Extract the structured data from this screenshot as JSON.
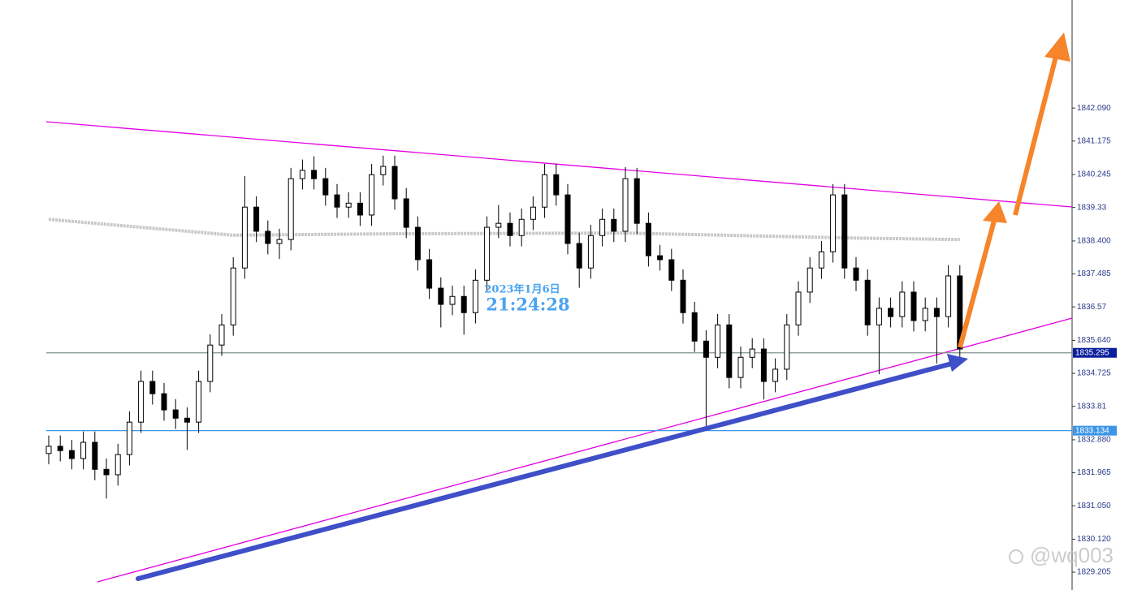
{
  "chart_data": {
    "type": "candlestick",
    "timestamp_date": "2023年1月6日",
    "timestamp_time": "21:24:28",
    "watermark": "@wq003",
    "ylim": [
      1828.71,
      1845.09
    ],
    "yticks": [
      {
        "value": 1842.09,
        "label": "1842.090"
      },
      1841.175,
      1840.245,
      1839.33,
      {
        "value": 1838.4,
        "label": "1838.400"
      },
      1837.485,
      1836.57,
      {
        "value": 1835.64,
        "label": "1835.640"
      },
      1834.725,
      1833.81,
      {
        "value": 1832.88,
        "label": "1832.880"
      },
      1831.965,
      {
        "value": 1831.05,
        "label": "1831.050"
      },
      {
        "value": 1830.12,
        "label": "1830.120"
      },
      1829.205
    ],
    "price_lines": [
      {
        "value": 1835.295,
        "color": "#7f9090",
        "label_bg": "#0a1f9c"
      },
      {
        "value": 1833.134,
        "color": "#3c96e6",
        "label_bg": "#3c96e6"
      }
    ],
    "open": [
      1832.5,
      1832.7,
      1832.58,
      1832.36,
      1832.81,
      1832.06,
      1831.91,
      1832.47,
      1833.37,
      1834.5,
      1834.16,
      1833.71,
      1833.48,
      1833.37,
      1834.5,
      1835.51,
      1836.07,
      1837.65,
      1839.34,
      1838.67,
      1838.33,
      1838.44,
      1840.13,
      1840.36,
      1840.13,
      1839.68,
      1839.34,
      1839.45,
      1839.12,
      1840.24,
      1840.47,
      1839.57,
      1838.78,
      1837.88,
      1837.09,
      1836.64,
      1836.86,
      1836.41,
      1837.31,
      1838.78,
      1838.89,
      1838.55,
      1839.0,
      1839.34,
      1840.24,
      1839.68,
      1838.33,
      1837.65,
      1838.55,
      1839.0,
      1838.67,
      1840.13,
      1838.89,
      1837.99,
      1837.88,
      1837.31,
      1836.41,
      1835.62,
      1835.17,
      1836.07,
      1834.61,
      1835.17,
      1835.4,
      1834.5,
      1834.84,
      1836.07,
      1836.98,
      1837.65,
      1838.1,
      1839.68,
      1837.65,
      1837.31,
      1836.07,
      1836.53,
      1836.3,
      1836.98,
      1836.19,
      1836.53,
      1836.3,
      1837.43
    ],
    "high": [
      1833.0,
      1833.0,
      1832.88,
      1833.11,
      1833.11,
      1832.36,
      1832.77,
      1833.67,
      1834.8,
      1834.8,
      1834.46,
      1834.01,
      1833.78,
      1834.8,
      1835.81,
      1836.37,
      1837.95,
      1840.2,
      1839.64,
      1838.97,
      1838.74,
      1840.43,
      1840.66,
      1840.75,
      1840.43,
      1839.98,
      1839.75,
      1839.75,
      1840.54,
      1840.77,
      1840.77,
      1839.87,
      1839.08,
      1838.18,
      1837.39,
      1837.16,
      1837.16,
      1837.61,
      1839.08,
      1839.4,
      1839.19,
      1839.3,
      1839.64,
      1840.54,
      1840.54,
      1839.98,
      1838.63,
      1838.85,
      1839.3,
      1839.3,
      1840.45,
      1840.43,
      1839.19,
      1838.29,
      1838.18,
      1837.61,
      1836.71,
      1835.92,
      1836.37,
      1836.37,
      1835.47,
      1835.7,
      1835.7,
      1835.14,
      1836.37,
      1837.28,
      1837.95,
      1838.4,
      1839.98,
      1839.98,
      1837.95,
      1837.61,
      1836.83,
      1836.83,
      1837.28,
      1837.28,
      1836.83,
      1836.83,
      1837.73,
      1837.73
    ],
    "low": [
      1832.2,
      1832.28,
      1832.06,
      1832.06,
      1831.76,
      1831.25,
      1831.61,
      1832.17,
      1833.07,
      1833.86,
      1833.41,
      1833.18,
      1832.6,
      1833.07,
      1834.2,
      1835.21,
      1835.77,
      1837.35,
      1838.37,
      1838.03,
      1837.9,
      1838.14,
      1839.83,
      1839.83,
      1839.38,
      1839.04,
      1839.04,
      1838.82,
      1838.82,
      1839.94,
      1839.27,
      1838.48,
      1837.58,
      1836.79,
      1836.0,
      1836.34,
      1835.8,
      1836.11,
      1837.01,
      1838.48,
      1838.25,
      1838.25,
      1838.7,
      1839.04,
      1839.38,
      1838.03,
      1837.1,
      1837.35,
      1838.25,
      1838.37,
      1838.37,
      1838.59,
      1837.69,
      1837.58,
      1837.01,
      1836.11,
      1835.32,
      1833.26,
      1834.87,
      1834.31,
      1834.31,
      1834.87,
      1834.0,
      1834.2,
      1834.54,
      1835.77,
      1836.68,
      1837.35,
      1837.8,
      1837.35,
      1837.01,
      1835.77,
      1834.7,
      1836.0,
      1836.0,
      1835.89,
      1835.89,
      1835.0,
      1836.0,
      1835.1
    ],
    "close": [
      1832.7,
      1832.58,
      1832.36,
      1832.81,
      1832.06,
      1831.91,
      1832.47,
      1833.37,
      1834.5,
      1834.16,
      1833.71,
      1833.48,
      1833.37,
      1834.5,
      1835.51,
      1836.07,
      1837.65,
      1839.34,
      1838.67,
      1838.33,
      1838.44,
      1840.13,
      1840.36,
      1840.13,
      1839.68,
      1839.34,
      1839.45,
      1839.12,
      1840.24,
      1840.47,
      1839.57,
      1838.78,
      1837.88,
      1837.09,
      1836.64,
      1836.86,
      1836.41,
      1837.31,
      1838.78,
      1838.89,
      1838.55,
      1839.0,
      1839.34,
      1840.24,
      1839.68,
      1838.33,
      1837.65,
      1838.55,
      1839.0,
      1838.67,
      1840.13,
      1838.89,
      1837.99,
      1837.88,
      1837.31,
      1836.41,
      1835.62,
      1835.17,
      1836.07,
      1834.61,
      1835.17,
      1835.4,
      1834.5,
      1834.84,
      1836.07,
      1836.98,
      1837.65,
      1838.1,
      1839.68,
      1837.65,
      1837.31,
      1836.07,
      1836.53,
      1836.3,
      1836.98,
      1836.19,
      1836.53,
      1836.3,
      1837.43,
      1835.4
    ],
    "ma": {
      "color": "#c8c8c8",
      "x": [
        0,
        16,
        30,
        50,
        70,
        79
      ],
      "values": [
        1839.0,
        1838.56,
        1838.6,
        1838.62,
        1838.48,
        1838.44
      ]
    }
  }
}
